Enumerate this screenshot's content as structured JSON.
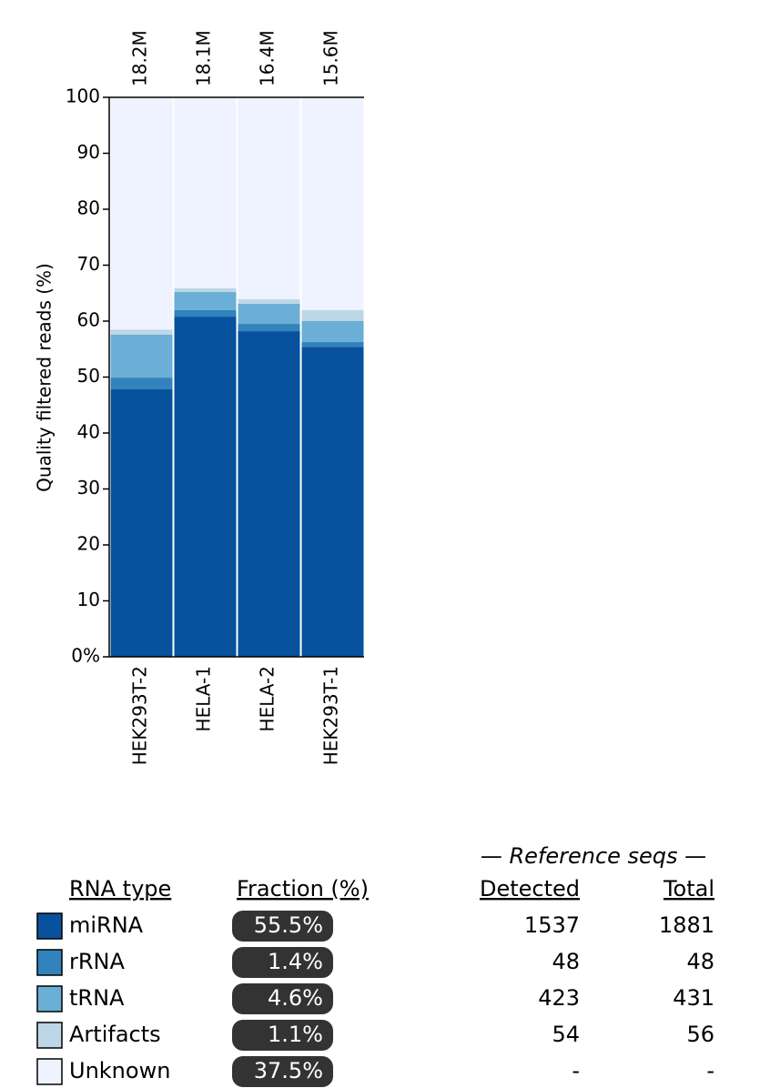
{
  "chart_data": {
    "type": "stacked_bar",
    "ylabel": "Quality filtered reads (%)",
    "categories": [
      "HEK293T-2",
      "HELA-1",
      "HELA-2",
      "HEK293T-1"
    ],
    "top_labels": [
      "18.2M",
      "18.1M",
      "16.4M",
      "15.6M"
    ],
    "series": [
      {
        "name": "miRNA",
        "color": "#08519c",
        "values": [
          47.8,
          60.8,
          58.2,
          55.4
        ]
      },
      {
        "name": "rRNA",
        "color": "#3182bd",
        "values": [
          2.1,
          1.2,
          1.3,
          0.9
        ]
      },
      {
        "name": "tRNA",
        "color": "#6baed6",
        "values": [
          7.7,
          3.2,
          3.6,
          3.7
        ]
      },
      {
        "name": "Artifacts",
        "color": "#bdd7e7",
        "values": [
          0.9,
          0.7,
          0.8,
          2.0
        ]
      },
      {
        "name": "Unknown",
        "color": "#eff3ff",
        "values": [
          41.5,
          34.1,
          36.1,
          38.0
        ]
      }
    ],
    "ylim": [
      0,
      100
    ],
    "yticks": [
      {
        "value": 0,
        "label": "0%"
      },
      10,
      20,
      30,
      40,
      50,
      60,
      70,
      80,
      90,
      100
    ]
  },
  "table": {
    "group_header": "— Reference seqs —",
    "headers": [
      "RNA type",
      "Fraction (%)",
      "Detected",
      "Total"
    ],
    "rows": [
      {
        "fraction": "55.5%",
        "detected": "1537",
        "total": "1881"
      },
      {
        "fraction": "1.4%",
        "detected": "48",
        "total": "48"
      },
      {
        "fraction": "4.6%",
        "detected": "423",
        "total": "431"
      },
      {
        "fraction": "1.1%",
        "detected": "54",
        "total": "56"
      },
      {
        "fraction": "37.5%",
        "detected": "-",
        "total": "-"
      }
    ]
  }
}
